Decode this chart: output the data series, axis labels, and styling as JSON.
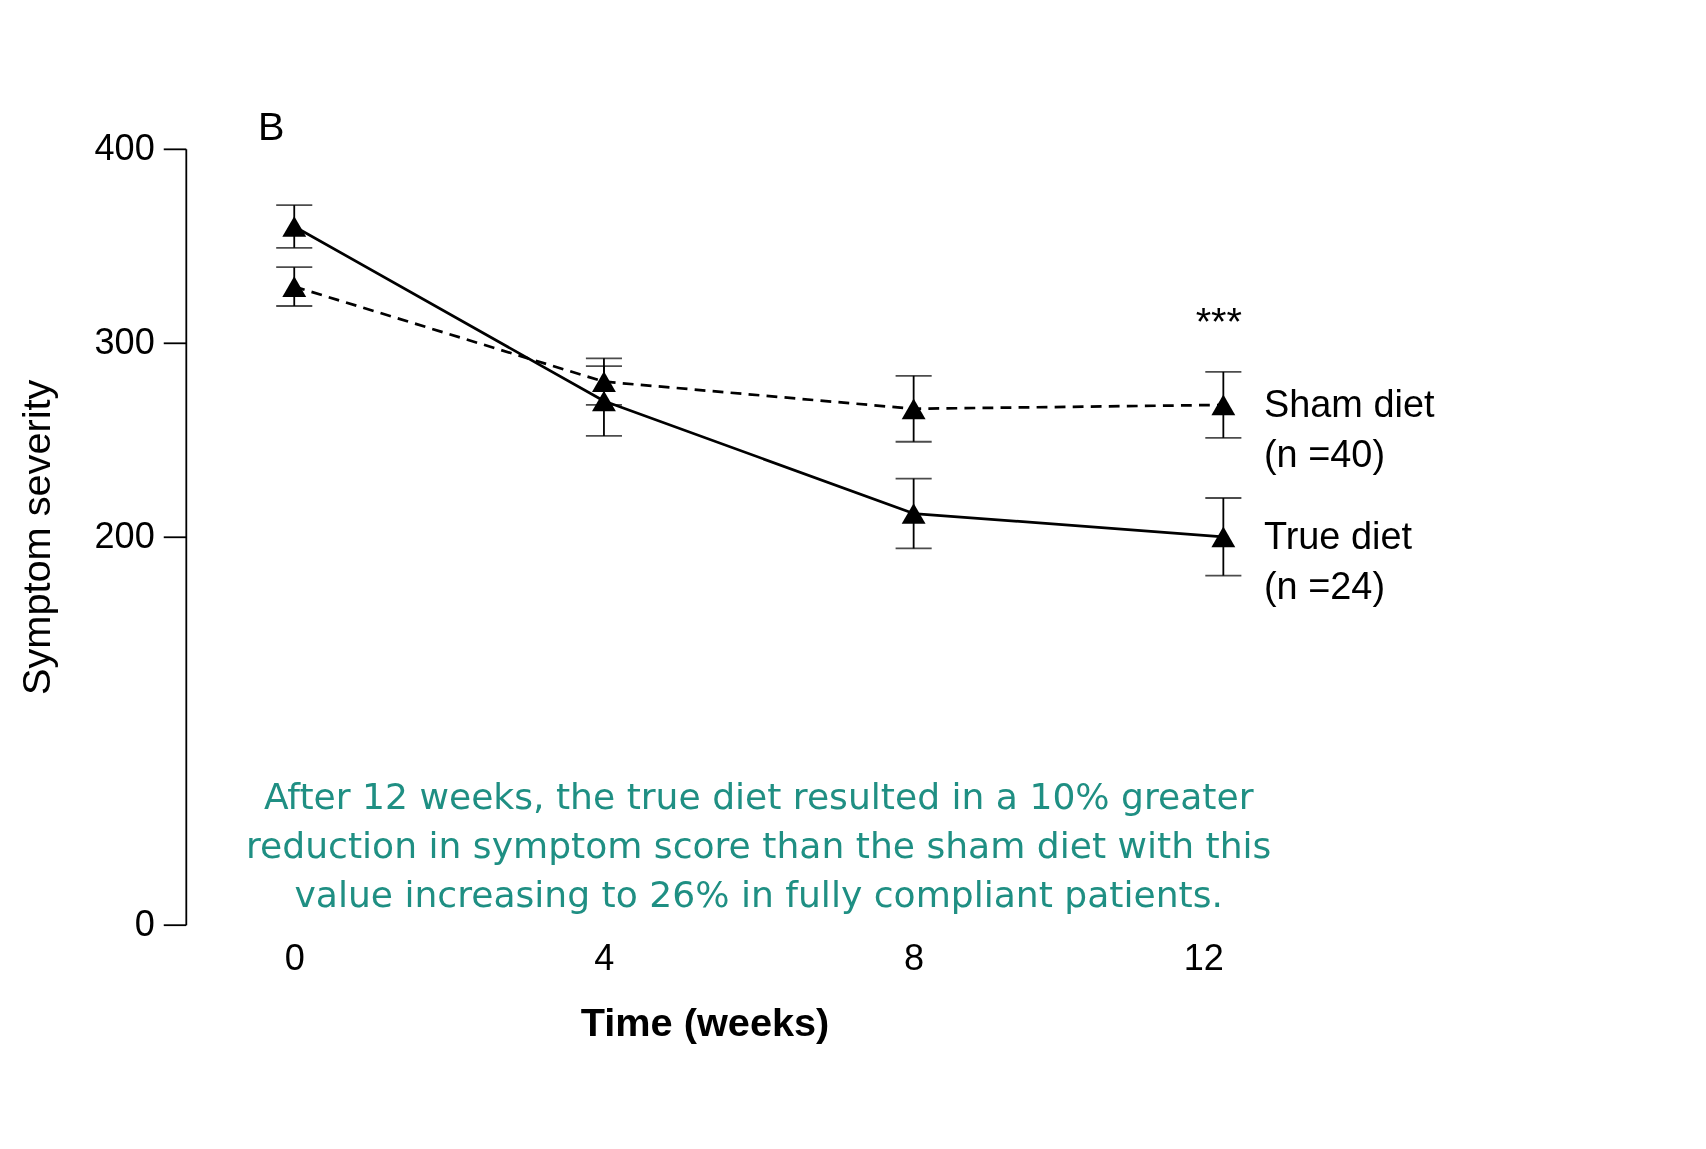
{
  "chart_data": {
    "type": "line",
    "xlabel": "Time (weeks)",
    "ylabel": "Symptom severity",
    "x": [
      0,
      4,
      8,
      12
    ],
    "xlim": [
      -1.4,
      12
    ],
    "xticks": [
      0,
      4,
      8,
      12
    ],
    "ylim": [
      0,
      400
    ],
    "yticks": [
      0,
      200,
      300,
      400
    ],
    "grid": false,
    "legend": false,
    "marker": "triangle",
    "series": [
      {
        "name": "Sham diet (n =40)",
        "color": "#000000",
        "line_style": "dashed",
        "values": [
          329,
          280,
          266,
          268
        ],
        "errors": [
          10,
          12,
          17,
          17
        ]
      },
      {
        "name": "True diet (n =24)",
        "color": "#000000",
        "line_style": "solid",
        "values": [
          360,
          270,
          212,
          200
        ],
        "errors": [
          11,
          18,
          18,
          20
        ]
      }
    ],
    "annotations": [
      "B",
      "***",
      "After 12 weeks, the true diet resulted in a 10% greater reduction in symptom score than the sham diet with this value increasing to 26% in fully compliant patients."
    ]
  }
}
